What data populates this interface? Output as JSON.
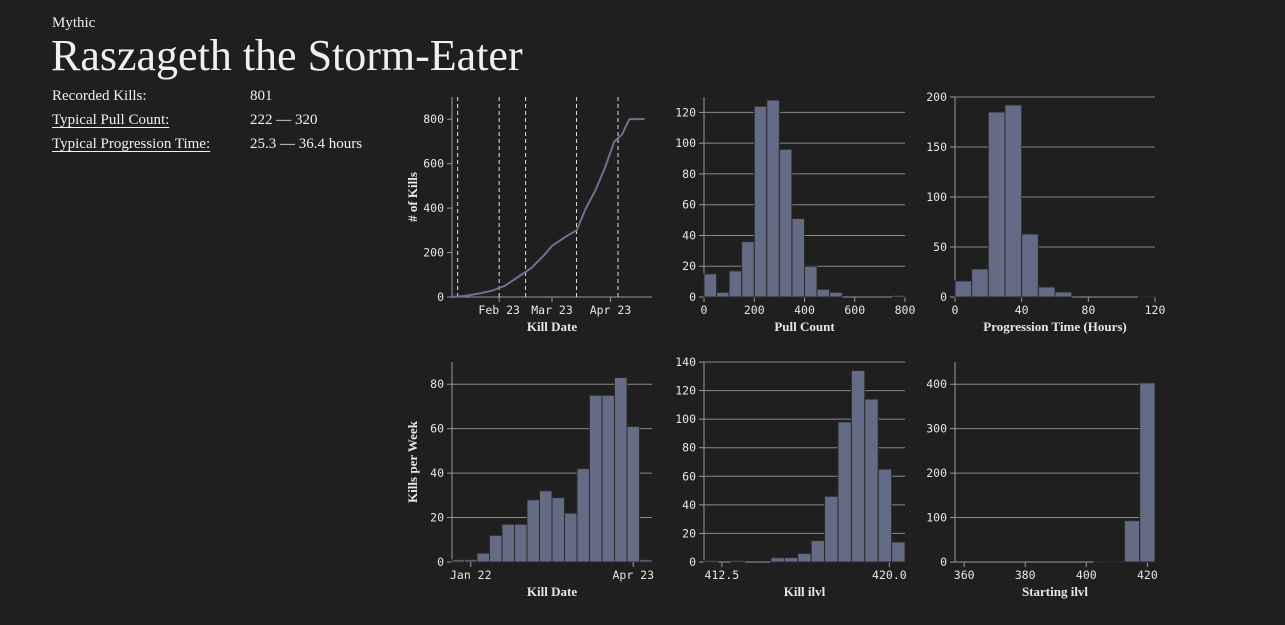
{
  "header": {
    "difficulty": "Mythic",
    "title": "Raszageth the Storm-Eater"
  },
  "stats": [
    {
      "label": "Recorded Kills:",
      "value": "801"
    },
    {
      "label": "Typical Pull Count:",
      "value": "222 — 320"
    },
    {
      "label": "Typical Progression Time:",
      "value": "25.3 — 36.4 hours"
    }
  ],
  "chart_data": [
    {
      "type": "line",
      "x_label": "Kill Date",
      "y_label": "# of Kills",
      "color": "#6b7290",
      "grid": false,
      "x": [
        "Jan 29",
        "Feb 5",
        "Feb 12",
        "Feb 19",
        "Feb 26",
        "Mar 5",
        "Mar 12",
        "Mar 19",
        "Mar 23",
        "Mar 30",
        "Apr 5",
        "Apr 10",
        "Apr 15",
        "Apr 20",
        "Apr 25",
        "Apr 29",
        "May 3",
        "May 11"
      ],
      "values": [
        0,
        5,
        15,
        28,
        50,
        90,
        130,
        190,
        230,
        270,
        300,
        400,
        480,
        580,
        700,
        730,
        800,
        801
      ],
      "markers": [
        "Feb 1",
        "Feb 23",
        "Mar 9",
        "Apr 5",
        "Apr 27"
      ],
      "xlim": [
        "Jan 29",
        "May 15"
      ],
      "xticks": [
        "Feb 23",
        "Mar 23",
        "Apr 23"
      ],
      "ylim": [
        0,
        900
      ],
      "yticks": [
        0,
        200,
        400,
        600,
        800
      ]
    },
    {
      "type": "histogram",
      "x_label": "Pull Count",
      "color": "#646b85",
      "grid": true,
      "bins": [
        0,
        50,
        100,
        150,
        200,
        250,
        300,
        350,
        400,
        450,
        500,
        550,
        600,
        650,
        700,
        750,
        800
      ],
      "values": [
        15,
        3,
        17,
        36,
        124,
        128,
        96,
        51,
        20,
        5,
        3,
        0,
        0,
        0,
        0,
        1
      ],
      "xlim": [
        0,
        800
      ],
      "xticks": [
        0,
        200,
        400,
        600,
        800
      ],
      "ylim": [
        0,
        130
      ],
      "yticks": [
        0,
        20,
        40,
        60,
        80,
        100,
        120
      ]
    },
    {
      "type": "histogram",
      "x_label": "Progression Time (Hours)",
      "color": "#646b85",
      "grid": true,
      "bins": [
        0,
        10,
        20,
        30,
        40,
        50,
        60,
        70,
        80,
        90,
        100,
        110,
        120
      ],
      "values": [
        16,
        28,
        185,
        192,
        63,
        10,
        5,
        0,
        0,
        0,
        0,
        1
      ],
      "xlim": [
        0,
        120
      ],
      "xticks": [
        0,
        40,
        80,
        120
      ],
      "ylim": [
        0,
        200
      ],
      "yticks": [
        0,
        50,
        100,
        150,
        200
      ]
    },
    {
      "type": "bar",
      "x_label": "Kill Date",
      "y_label": "Kills per Week",
      "color": "#646b85",
      "grid": true,
      "categories": [
        null,
        "Jan 22",
        null,
        null,
        null,
        null,
        null,
        null,
        null,
        null,
        null,
        null,
        null,
        null,
        "Apr 23",
        null
      ],
      "values": [
        1,
        1,
        4,
        12,
        17,
        17,
        28,
        32,
        29,
        22,
        42,
        75,
        75,
        83,
        61,
        1
      ],
      "ylim": [
        0,
        90
      ],
      "yticks": [
        0,
        20,
        40,
        60,
        80
      ]
    },
    {
      "type": "histogram",
      "x_label": "Kill ilvl",
      "color": "#646b85",
      "grid": true,
      "bins": [
        411.7,
        412.3,
        412.9,
        413.5,
        414.1,
        414.7,
        415.3,
        415.9,
        416.5,
        417.1,
        417.7,
        418.3,
        418.9,
        419.5,
        420.1,
        420.7
      ],
      "values": [
        1,
        0,
        1,
        0,
        0,
        3,
        3,
        6,
        15,
        46,
        98,
        134,
        114,
        65,
        14
      ],
      "xlim": [
        411.7,
        420.7
      ],
      "xticks": [
        412.5,
        {
          "value": 420,
          "label": "420.0"
        }
      ],
      "ylim": [
        0,
        140
      ],
      "yticks": [
        0,
        20,
        40,
        60,
        80,
        100,
        120,
        140
      ]
    },
    {
      "type": "histogram",
      "x_label": "Starting ilvl",
      "color": "#646b85",
      "grid": true,
      "bins": [
        357.5,
        362.5,
        367.5,
        372.5,
        377.5,
        382.5,
        387.5,
        392.5,
        397.5,
        402.5,
        407.5,
        412.5,
        417.5,
        422.5
      ],
      "values": [
        0,
        0,
        0,
        0,
        0,
        0,
        0,
        0,
        0,
        1,
        2,
        93,
        403
      ],
      "xlim": [
        357,
        422.5
      ],
      "xticks": [
        360,
        380,
        400,
        420
      ],
      "ylim": [
        0,
        450
      ],
      "yticks": [
        0,
        100,
        200,
        300,
        400
      ]
    }
  ]
}
